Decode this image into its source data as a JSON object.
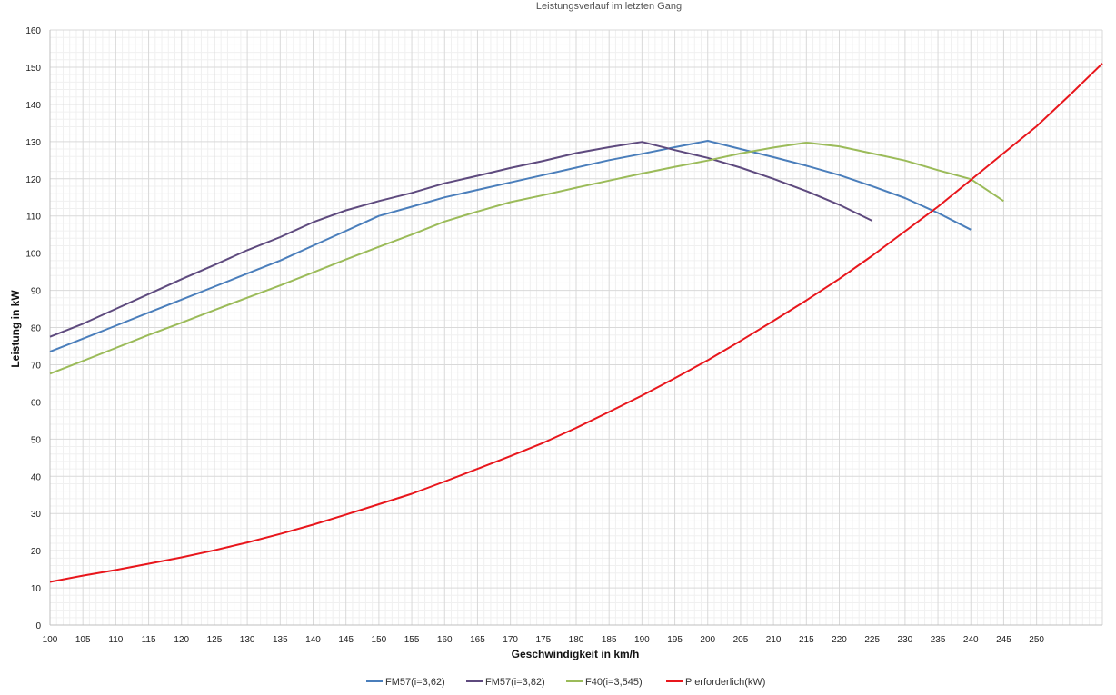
{
  "chart_data": {
    "type": "line",
    "title": "Leistungsverlauf im letzten Gang",
    "xlabel": "Geschwindigkeit in km/h",
    "ylabel": "Leistung in kW",
    "xlim": [
      100,
      260
    ],
    "ylim": [
      0,
      160
    ],
    "x_ticks": [
      100,
      105,
      110,
      115,
      120,
      125,
      130,
      135,
      140,
      145,
      150,
      155,
      160,
      165,
      170,
      175,
      180,
      185,
      190,
      195,
      200,
      205,
      210,
      215,
      220,
      225,
      230,
      235,
      240,
      245,
      250
    ],
    "y_ticks": [
      0,
      10,
      20,
      30,
      40,
      50,
      60,
      70,
      80,
      90,
      100,
      110,
      120,
      130,
      140,
      150,
      160
    ],
    "grid": true,
    "legend_position": "bottom",
    "series": [
      {
        "name": "FM57(i=3,62)",
        "color": "#4a7ebb",
        "x": [
          100,
          105,
          110,
          115,
          120,
          125,
          130,
          135,
          140,
          145,
          150,
          155,
          160,
          165,
          170,
          175,
          180,
          185,
          190,
          195,
          200,
          205,
          210,
          215,
          220,
          225,
          230,
          235,
          240
        ],
        "y": [
          73.5,
          77,
          80.5,
          84,
          87.5,
          91,
          94.5,
          98,
          102,
          106,
          110,
          112.5,
          115,
          117,
          119,
          121,
          123,
          125,
          126.7,
          128.5,
          130.2,
          128,
          125.8,
          123.5,
          121,
          118,
          114.8,
          110.8,
          106.3
        ]
      },
      {
        "name": "FM57(i=3,82)",
        "color": "#5e4a7e",
        "x": [
          100,
          105,
          110,
          115,
          120,
          125,
          130,
          135,
          140,
          145,
          150,
          155,
          160,
          165,
          170,
          175,
          180,
          185,
          190,
          195,
          200,
          205,
          210,
          215,
          220,
          225
        ],
        "y": [
          77.5,
          81,
          85,
          89,
          93,
          96.8,
          100.8,
          104.3,
          108.3,
          111.5,
          114,
          116.2,
          118.8,
          120.8,
          122.9,
          124.8,
          126.9,
          128.5,
          129.9,
          127.7,
          125.6,
          123,
          120,
          116.7,
          113,
          108.7
        ]
      },
      {
        "name": "F40(i=3,545)",
        "color": "#9bbb59",
        "x": [
          100,
          105,
          110,
          115,
          120,
          125,
          130,
          135,
          140,
          145,
          150,
          155,
          160,
          165,
          170,
          175,
          180,
          185,
          190,
          195,
          200,
          205,
          210,
          215,
          220,
          225,
          230,
          235,
          240,
          245
        ],
        "y": [
          67.6,
          71,
          74.5,
          78,
          81.3,
          84.7,
          88,
          91.3,
          94.8,
          98.3,
          101.7,
          105,
          108.5,
          111.2,
          113.7,
          115.6,
          117.6,
          119.5,
          121.4,
          123.2,
          124.9,
          126.8,
          128.4,
          129.7,
          128.7,
          126.8,
          124.9,
          122.3,
          119.9,
          114
        ]
      },
      {
        "name": "P erforderlich(kW)",
        "color": "#e8161c",
        "x": [
          100,
          105,
          110,
          115,
          120,
          125,
          130,
          135,
          140,
          145,
          150,
          155,
          160,
          165,
          170,
          175,
          180,
          185,
          190,
          195,
          200,
          205,
          210,
          215,
          220,
          225,
          230,
          235,
          240,
          245,
          250,
          255,
          260
        ],
        "y": [
          11.6,
          13.3,
          14.8,
          16.5,
          18.2,
          20.1,
          22.2,
          24.5,
          27,
          29.7,
          32.5,
          35.3,
          38.6,
          42,
          45.4,
          49,
          53,
          57.3,
          61.7,
          66.4,
          71.2,
          76.4,
          81.8,
          87.3,
          93.1,
          99.3,
          105.9,
          112.5,
          119.7,
          126.9,
          134.1,
          142.4,
          151
        ]
      }
    ]
  }
}
